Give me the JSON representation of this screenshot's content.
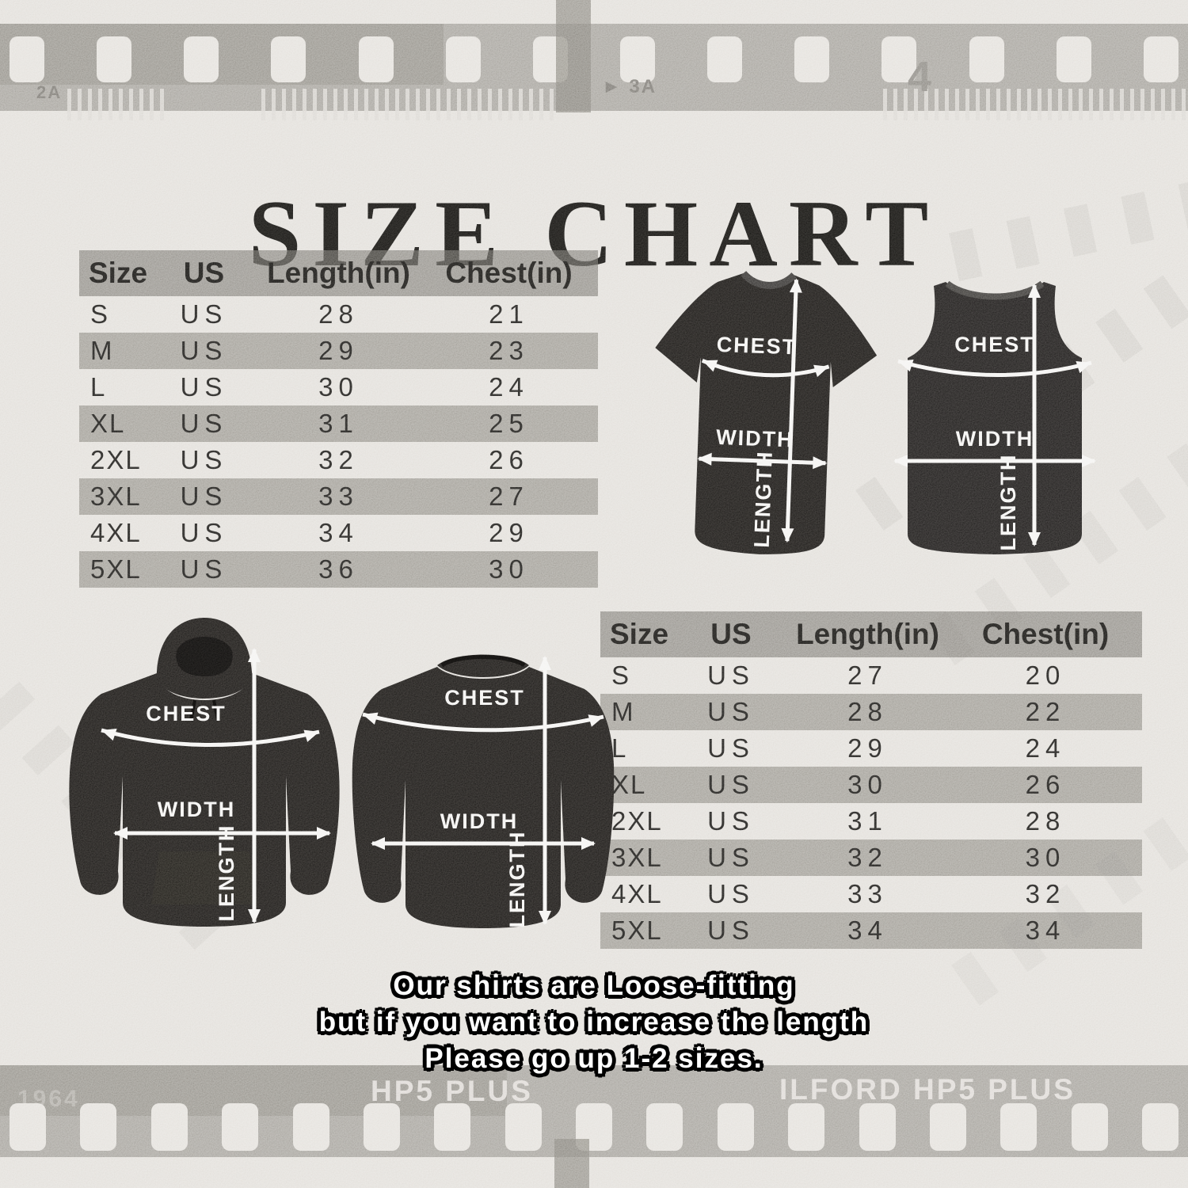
{
  "title": "SIZE CHART",
  "note_lines": [
    "Our shirts are Loose-fitting",
    "but if you want to increase the length",
    "Please go up 1-2 sizes."
  ],
  "garment_labels": {
    "chest": "CHEST",
    "width": "WIDTH",
    "length": "LENGTH"
  },
  "film_strip": {
    "top_left_marker": "2A",
    "top_mid_marker": "► 3A",
    "top_right_marker": "4",
    "bottom_left_marker": "1964",
    "bottom_mid_marker": "HP5 PLUS",
    "bottom_right_marker": "ILFORD HP5 PLUS"
  },
  "colors": {
    "background": "#e2dfda",
    "film_strip_gray": "#a8a5a0",
    "table_stripe_gray": "#a09d97",
    "ink": "#232220",
    "garment_black": "#201e1c",
    "arrow_white": "#f4f3f1"
  },
  "chart_data": [
    {
      "type": "table",
      "name": "size_table_top_left",
      "columns": [
        "Size",
        "US",
        "Length(in)",
        "Chest(in)"
      ],
      "rows": [
        [
          "S",
          "US",
          "28",
          "21"
        ],
        [
          "M",
          "US",
          "29",
          "23"
        ],
        [
          "L",
          "US",
          "30",
          "24"
        ],
        [
          "XL",
          "US",
          "31",
          "25"
        ],
        [
          "2XL",
          "US",
          "32",
          "26"
        ],
        [
          "3XL",
          "US",
          "33",
          "27"
        ],
        [
          "4XL",
          "US",
          "34",
          "29"
        ],
        [
          "5XL",
          "US",
          "36",
          "30"
        ]
      ]
    },
    {
      "type": "table",
      "name": "size_table_bottom_right",
      "columns": [
        "Size",
        "US",
        "Length(in)",
        "Chest(in)"
      ],
      "rows": [
        [
          "S",
          "US",
          "27",
          "20"
        ],
        [
          "M",
          "US",
          "28",
          "22"
        ],
        [
          "L",
          "US",
          "29",
          "24"
        ],
        [
          "XL",
          "US",
          "30",
          "26"
        ],
        [
          "2XL",
          "US",
          "31",
          "28"
        ],
        [
          "3XL",
          "US",
          "32",
          "30"
        ],
        [
          "4XL",
          "US",
          "33",
          "32"
        ],
        [
          "5XL",
          "US",
          "34",
          "34"
        ]
      ]
    }
  ]
}
